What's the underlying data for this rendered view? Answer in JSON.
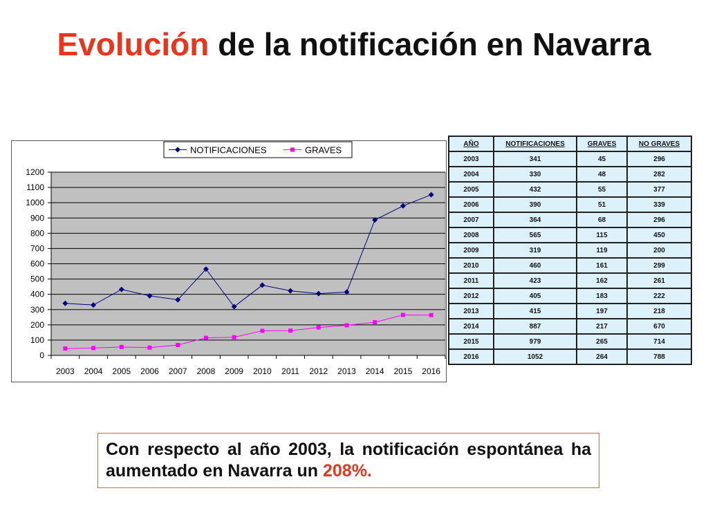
{
  "slide": {
    "title_accent": "Evolución",
    "title_rest": " de la notificación en Navarra",
    "note_text": "Con respecto al año 2003, la notificación espontánea ha aumentado en Navarra un ",
    "note_value": "208%."
  },
  "table": {
    "headers": [
      "AÑO",
      "NOTIFICACIONES",
      "GRAVES",
      "NO GRAVES"
    ],
    "rows": [
      [
        "2003",
        "341",
        "45",
        "296"
      ],
      [
        "2004",
        "330",
        "48",
        "282"
      ],
      [
        "2005",
        "432",
        "55",
        "377"
      ],
      [
        "2006",
        "390",
        "51",
        "339"
      ],
      [
        "2007",
        "364",
        "68",
        "296"
      ],
      [
        "2008",
        "565",
        "115",
        "450"
      ],
      [
        "2009",
        "319",
        "119",
        "200"
      ],
      [
        "2010",
        "460",
        "161",
        "299"
      ],
      [
        "2011",
        "423",
        "162",
        "261"
      ],
      [
        "2012",
        "405",
        "183",
        "222"
      ],
      [
        "2013",
        "415",
        "197",
        "218"
      ],
      [
        "2014",
        "887",
        "217",
        "670"
      ],
      [
        "2015",
        "979",
        "265",
        "714"
      ],
      [
        "2016",
        "1052",
        "264",
        "788"
      ]
    ]
  },
  "chart_data": {
    "type": "line",
    "title": "",
    "xlabel": "",
    "ylabel": "",
    "categories": [
      "2003",
      "2004",
      "2005",
      "2006",
      "2007",
      "2008",
      "2009",
      "2010",
      "2011",
      "2012",
      "2013",
      "2014",
      "2015",
      "2016"
    ],
    "series": [
      {
        "name": "NOTIFICACIONES",
        "color": "#000080",
        "marker": "diamond",
        "values": [
          341,
          330,
          432,
          390,
          364,
          565,
          319,
          460,
          423,
          405,
          415,
          887,
          979,
          1052
        ]
      },
      {
        "name": "GRAVES",
        "color": "#ff00ff",
        "marker": "square",
        "values": [
          45,
          48,
          55,
          51,
          68,
          115,
          119,
          161,
          162,
          183,
          197,
          217,
          265,
          264
        ]
      }
    ],
    "ylim": [
      0,
      1200
    ],
    "yticks": [
      0,
      100,
      200,
      300,
      400,
      500,
      600,
      700,
      800,
      900,
      1000,
      1100,
      1200
    ],
    "grid": true,
    "plot_background": "#c0c0c0",
    "legend_position": "top"
  }
}
